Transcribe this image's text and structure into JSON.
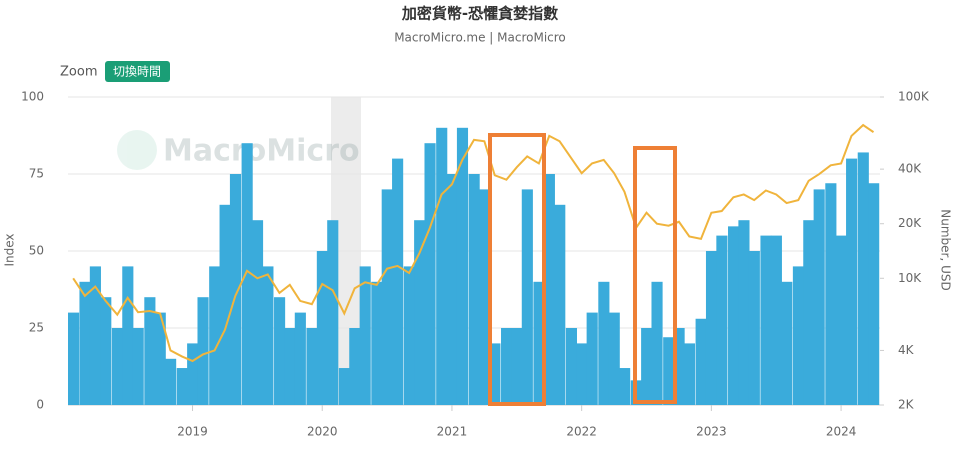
{
  "chart_data": {
    "type": "bar-line",
    "title": "加密貨幣-恐懼貪婪指數",
    "subtitle": "MacroMicro.me | MacroMicro",
    "zoom_label": "Zoom",
    "zoom_button": "切換時間",
    "watermark": "MacroMicro",
    "y_label": "Index",
    "y2_label": "Number, USD",
    "x": [
      2018.08,
      2018.17,
      2018.25,
      2018.33,
      2018.42,
      2018.5,
      2018.58,
      2018.67,
      2018.75,
      2018.83,
      2018.92,
      2019.0,
      2019.08,
      2019.17,
      2019.25,
      2019.33,
      2019.42,
      2019.5,
      2019.58,
      2019.67,
      2019.75,
      2019.83,
      2019.92,
      2020.0,
      2020.08,
      2020.17,
      2020.25,
      2020.33,
      2020.42,
      2020.5,
      2020.58,
      2020.67,
      2020.75,
      2020.83,
      2020.92,
      2021.0,
      2021.08,
      2021.17,
      2021.25,
      2021.33,
      2021.42,
      2021.5,
      2021.58,
      2021.67,
      2021.75,
      2021.83,
      2021.92,
      2022.0,
      2022.08,
      2022.17,
      2022.25,
      2022.33,
      2022.42,
      2022.5,
      2022.58,
      2022.67,
      2022.75,
      2022.83,
      2022.92,
      2023.0,
      2023.08,
      2023.17,
      2023.25,
      2023.33,
      2023.42,
      2023.5,
      2023.58,
      2023.67,
      2023.75,
      2023.83,
      2023.92,
      2024.0,
      2024.08,
      2024.17,
      2024.25
    ],
    "series": [
      {
        "name": "Index",
        "color": "#3aabdb",
        "values": [
          30,
          40,
          45,
          35,
          25,
          45,
          25,
          35,
          30,
          15,
          12,
          20,
          35,
          45,
          65,
          75,
          85,
          60,
          45,
          35,
          25,
          30,
          25,
          50,
          60,
          12,
          25,
          45,
          40,
          70,
          80,
          45,
          60,
          85,
          90,
          75,
          90,
          75,
          70,
          20,
          25,
          25,
          70,
          40,
          75,
          65,
          25,
          20,
          30,
          40,
          30,
          12,
          8,
          25,
          40,
          22,
          25,
          20,
          28,
          50,
          55,
          58,
          60,
          50,
          55,
          55,
          40,
          45,
          60,
          70,
          72,
          55,
          80,
          82,
          72
        ]
      },
      {
        "name": "Number, USD",
        "axis": "y2",
        "color": "#f0b43c",
        "values": [
          10000,
          8000,
          9000,
          7500,
          6300,
          7800,
          6500,
          6600,
          6400,
          4000,
          3700,
          3500,
          3800,
          4000,
          5200,
          8000,
          11000,
          10000,
          10500,
          8300,
          9200,
          7500,
          7200,
          9300,
          8600,
          6400,
          8800,
          9500,
          9200,
          11300,
          11700,
          10700,
          13800,
          19000,
          29000,
          33000,
          45000,
          58000,
          57000,
          37000,
          35000,
          41000,
          47000,
          43000,
          61000,
          57000,
          46000,
          38000,
          43000,
          45000,
          38000,
          30000,
          19000,
          23000,
          20000,
          19500,
          20500,
          17000,
          16500,
          23000,
          23500,
          28000,
          29000,
          27000,
          30500,
          29000,
          26000,
          27000,
          34500,
          37500,
          42000,
          43000,
          61000,
          70000,
          64000
        ]
      }
    ],
    "xlim": [
      2018.04,
      2024.3
    ],
    "xticks": [
      2019,
      2020,
      2021,
      2022,
      2023,
      2024
    ],
    "ylim": [
      0,
      100
    ],
    "yticks": [
      0,
      25,
      50,
      75,
      100
    ],
    "y2lim": [
      2000,
      100000
    ],
    "y2log": true,
    "y2ticks": [
      {
        "value": 2000,
        "label": "2K"
      },
      {
        "value": 4000,
        "label": "4K"
      },
      {
        "value": 10000,
        "label": "10K"
      },
      {
        "value": 20000,
        "label": "20K"
      },
      {
        "value": 40000,
        "label": "40K"
      },
      {
        "value": 100000,
        "label": "100K"
      }
    ],
    "grid": true
  }
}
